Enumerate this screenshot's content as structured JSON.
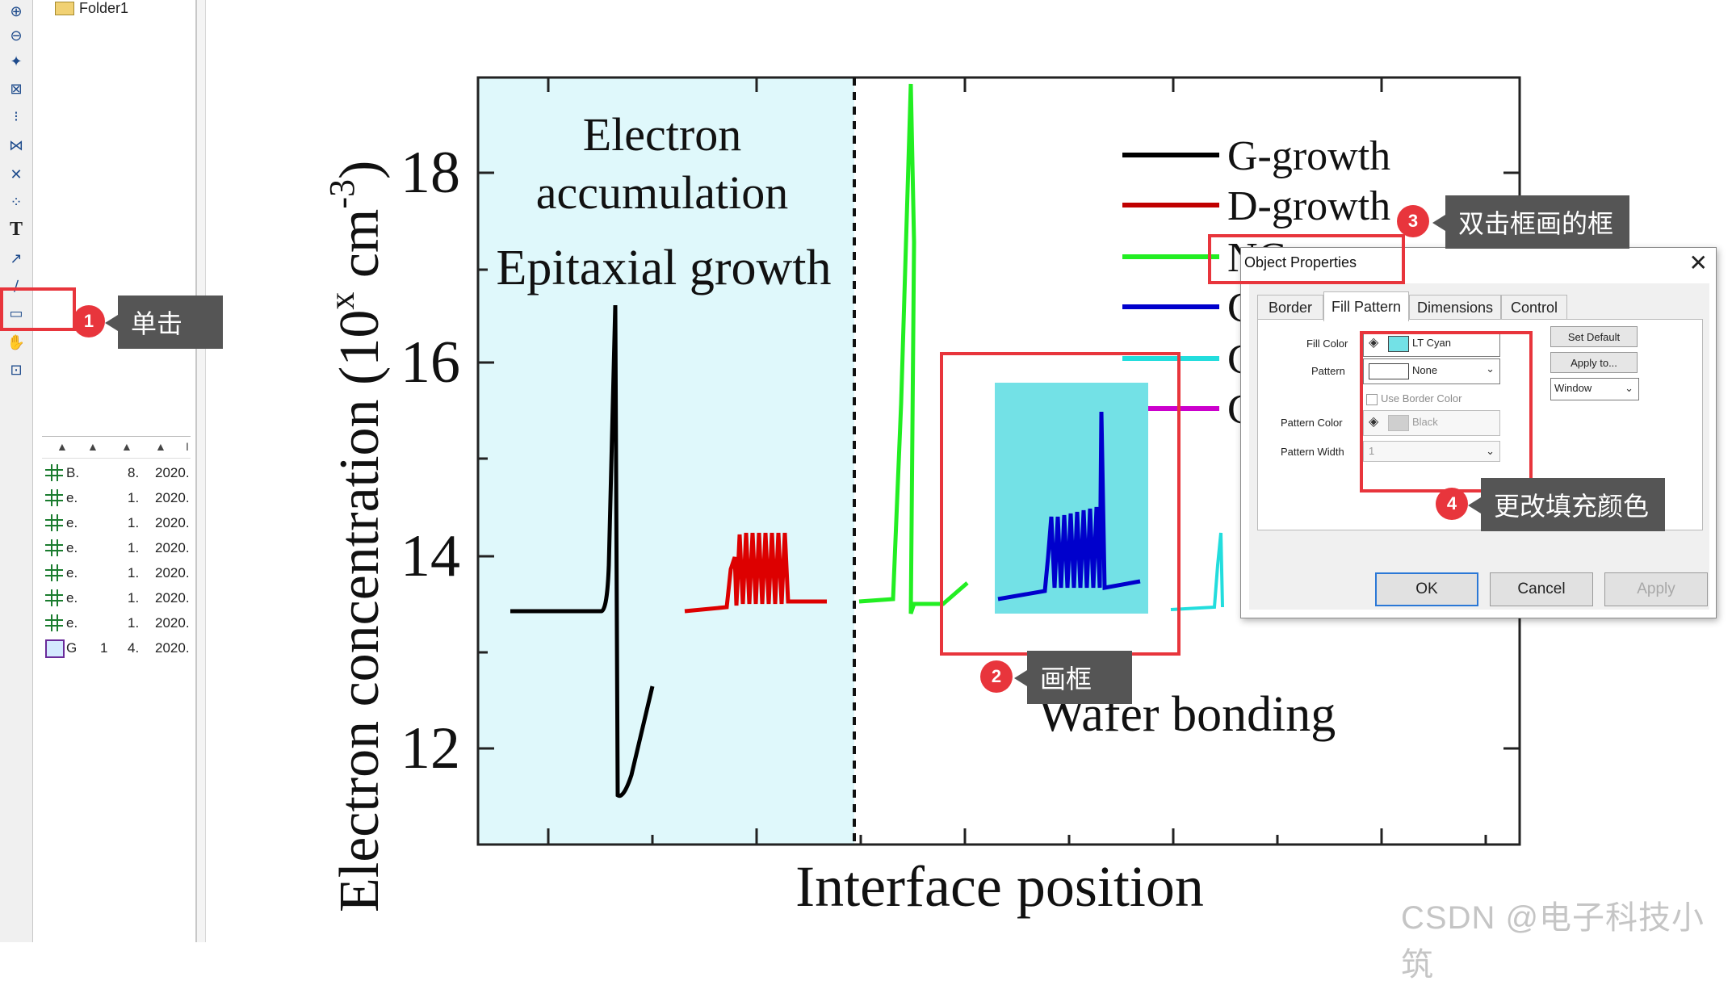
{
  "explorer": {
    "folder_label": "Folder1",
    "rows": [
      {
        "kind": "book",
        "name": "B.",
        "c2": "8.",
        "c3": "2020."
      },
      {
        "kind": "book",
        "name": "e.",
        "c2": "1.",
        "c3": "2020."
      },
      {
        "kind": "book",
        "name": "e.",
        "c2": "1.",
        "c3": "2020."
      },
      {
        "kind": "book",
        "name": "e.",
        "c2": "1.",
        "c3": "2020."
      },
      {
        "kind": "book",
        "name": "e.",
        "c2": "1.",
        "c3": "2020."
      },
      {
        "kind": "book",
        "name": "e.",
        "c2": "1.",
        "c3": "2020."
      },
      {
        "kind": "book",
        "name": "e.",
        "c2": "1.",
        "c3": "2020."
      },
      {
        "kind": "graph",
        "name": "G",
        "c1": "1",
        "c2": "4.",
        "c3": "2020."
      }
    ],
    "header_cols": [
      "▲",
      "▲",
      "▲",
      "▲",
      "I"
    ]
  },
  "toolbar": {
    "icons": [
      "zoom-in-icon",
      "zoom-out-icon",
      "move-icon",
      "rescale-icon",
      "data-reader-icon",
      "screen-reader-icon",
      "draw-data-icon",
      "mask-icon",
      "text-tool-icon",
      "arrow-tool-icon",
      "line-tool-icon",
      "rectangle-tool-icon",
      "pan-icon",
      "region-icon"
    ],
    "text_glyph": "T"
  },
  "chart_data": {
    "type": "line",
    "title": "",
    "xlabel": "Interface position",
    "ylabel_main": "Electron concentration (10",
    "ylabel_sup": "x",
    "ylabel_unit": " cm",
    "ylabel_exp": "-3",
    "ylabel_close": ")",
    "yticks": [
      "18",
      "16",
      "14",
      "12"
    ],
    "ylim": [
      11,
      19
    ],
    "regions": [
      {
        "label_lines": [
          "Electron",
          "accumulation"
        ],
        "fill": "#dff8fb"
      },
      {
        "label_lines": [
          "Epitaxial growth"
        ]
      },
      {
        "label_lines": [
          "Wafer bonding"
        ]
      }
    ],
    "legend": [
      {
        "name": "G-growth",
        "color": "#000000"
      },
      {
        "name": "D-growth",
        "color": "#c00000"
      },
      {
        "name": "NC-",
        "color": "#22ee22"
      },
      {
        "name": "C",
        "color": "#0000cc"
      },
      {
        "name": "C",
        "color": "#22dddd"
      },
      {
        "name": "C",
        "color": "#cc00cc"
      }
    ],
    "series": [
      {
        "name": "G-growth",
        "color": "#000000"
      },
      {
        "name": "D-growth",
        "color": "#dd0000"
      },
      {
        "name": "NC-growth",
        "color": "#22ee22"
      },
      {
        "name": "C (blue)",
        "color": "#0000cc"
      },
      {
        "name": "C (cyan)",
        "color": "#22dddd"
      }
    ],
    "drawn_rect_fill": "#73e1e6"
  },
  "annotations": [
    {
      "num": "1",
      "text": "单击"
    },
    {
      "num": "2",
      "text": "画框"
    },
    {
      "num": "3",
      "text": "双击框画的框"
    },
    {
      "num": "4",
      "text": "更改填充颜色"
    }
  ],
  "dialog": {
    "title": "Object Properties",
    "close_glyph": "✕",
    "tabs": [
      "Border",
      "Fill Pattern",
      "Dimensions",
      "Control"
    ],
    "active_tab": "Fill Pattern",
    "fill_color_label": "Fill Color",
    "fill_color_value": "LT Cyan",
    "fill_color_hex": "#73e1e6",
    "pattern_label": "Pattern",
    "pattern_value": "None",
    "use_border_label": "Use Border Color",
    "pattern_color_label": "Pattern Color",
    "pattern_color_value": "Black",
    "pattern_width_label": "Pattern Width",
    "pattern_width_value": "1",
    "set_default": "Set Default",
    "apply_to": "Apply to...",
    "window_value": "Window",
    "ok": "OK",
    "cancel": "Cancel",
    "apply": "Apply"
  },
  "watermark": "CSDN @电子科技小筑"
}
